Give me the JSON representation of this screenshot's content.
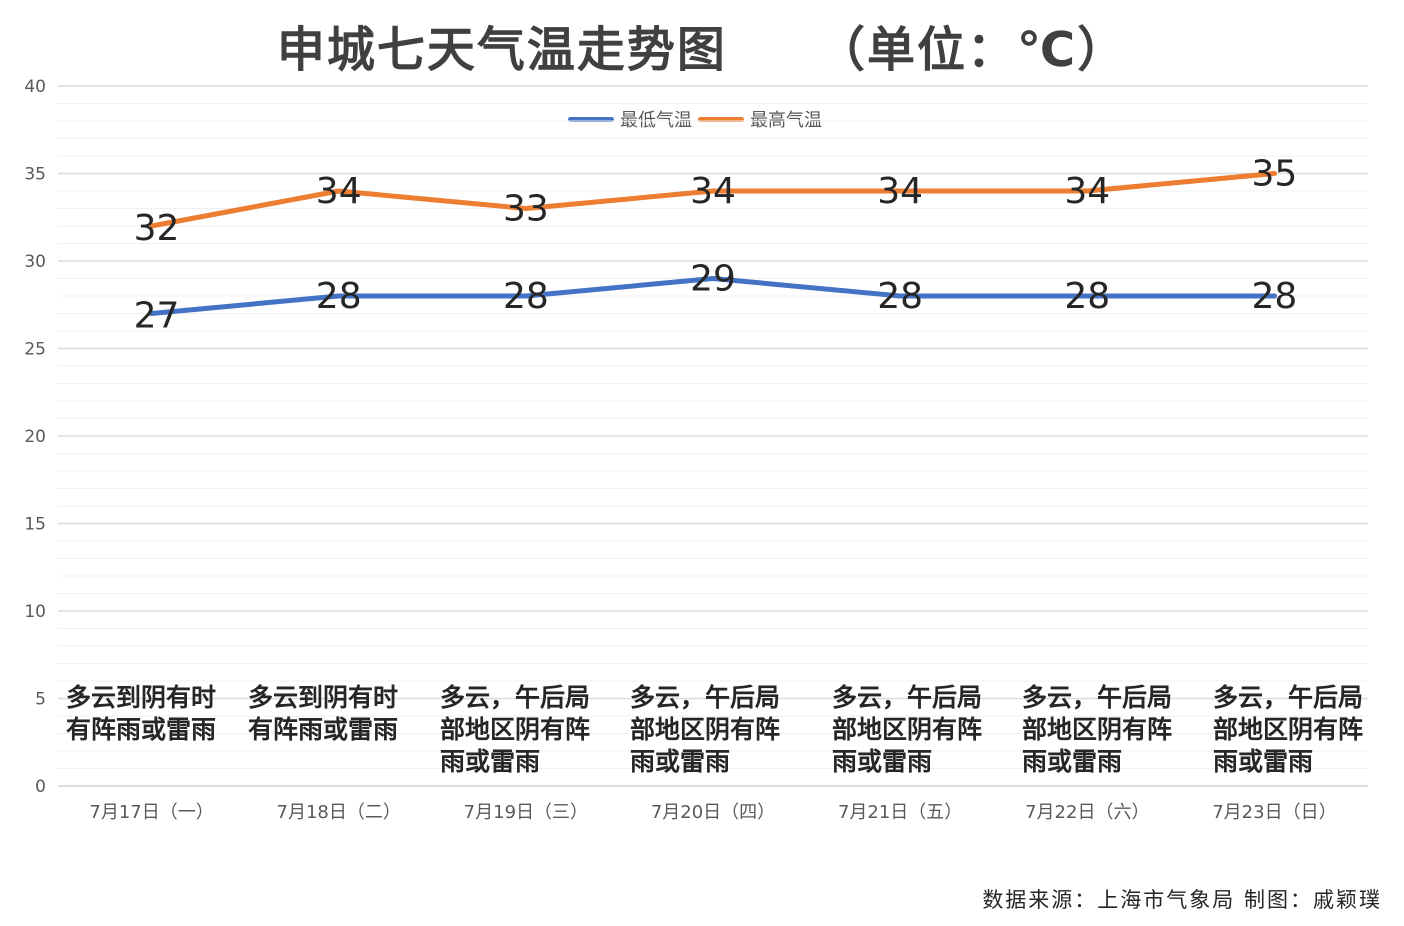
{
  "title_main": "申城七天气温走势图",
  "title_unit": "（单位：℃）",
  "legend": [
    {
      "name": "最低气温",
      "color": "#4472C4"
    },
    {
      "name": "最高气温",
      "color": "#ED7D31"
    }
  ],
  "weather": [
    "多云到阴有时有阵雨或雷雨",
    "多云到阴有时有阵雨或雷雨",
    "多云，午后局部地区阴有阵雨或雷雨",
    "多云，午后局部地区阴有阵雨或雷雨",
    "多云，午后局部地区阴有阵雨或雷雨",
    "多云，午后局部地区阴有阵雨或雷雨",
    "多云，午后局部地区阴有阵雨或雷雨"
  ],
  "source": "数据来源：上海市气象局   制图：戚颖璞",
  "chart_data": {
    "type": "line",
    "title": "申城七天气温走势图 （单位：℃）",
    "categories": [
      "7月17日（一）",
      "7月18日（二）",
      "7月19日（三）",
      "7月20日（四）",
      "7月21日（五）",
      "7月22日（六）",
      "7月23日（日）"
    ],
    "series": [
      {
        "name": "最低气温",
        "color": "#4472C4",
        "values": [
          27,
          28,
          28,
          29,
          28,
          28,
          28
        ]
      },
      {
        "name": "最高气温",
        "color": "#ED7D31",
        "values": [
          32,
          34,
          33,
          34,
          34,
          34,
          35
        ]
      }
    ],
    "ylim": [
      0,
      40
    ],
    "yticks": [
      0,
      5,
      10,
      15,
      20,
      25,
      30,
      35,
      40
    ],
    "xlabel": "",
    "ylabel": "",
    "legend_position": "top-center",
    "grid": true
  }
}
